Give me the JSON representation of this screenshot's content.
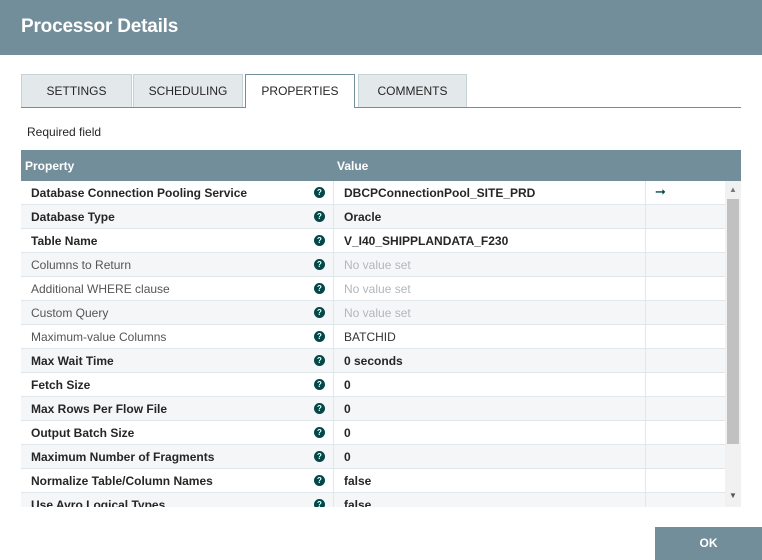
{
  "dialog": {
    "title": "Processor Details"
  },
  "tabs": [
    {
      "label": "SETTINGS",
      "active": false
    },
    {
      "label": "SCHEDULING",
      "active": false
    },
    {
      "label": "PROPERTIES",
      "active": true
    },
    {
      "label": "COMMENTS",
      "active": false
    }
  ],
  "required_label": "Required field",
  "grid": {
    "columns": {
      "property": "Property",
      "value": "Value"
    },
    "rows": [
      {
        "name": "Database Connection Pooling Service",
        "required": true,
        "value": "DBCPConnectionPool_SITE_PRD",
        "value_state": "set",
        "action": "go-to-arrow-icon"
      },
      {
        "name": "Database Type",
        "required": true,
        "value": "Oracle",
        "value_state": "set"
      },
      {
        "name": "Table Name",
        "required": true,
        "value": "V_I40_SHIPPLANDATA_F230",
        "value_state": "set"
      },
      {
        "name": "Columns to Return",
        "required": false,
        "value": "No value set",
        "value_state": "unset"
      },
      {
        "name": "Additional WHERE clause",
        "required": false,
        "value": "No value set",
        "value_state": "unset"
      },
      {
        "name": "Custom Query",
        "required": false,
        "value": "No value set",
        "value_state": "unset"
      },
      {
        "name": "Maximum-value Columns",
        "required": false,
        "value": "BATCHID",
        "value_state": "plain"
      },
      {
        "name": "Max Wait Time",
        "required": true,
        "value": "0 seconds",
        "value_state": "set"
      },
      {
        "name": "Fetch Size",
        "required": true,
        "value": "0",
        "value_state": "set"
      },
      {
        "name": "Max Rows Per Flow File",
        "required": true,
        "value": "0",
        "value_state": "set"
      },
      {
        "name": "Output Batch Size",
        "required": true,
        "value": "0",
        "value_state": "set"
      },
      {
        "name": "Maximum Number of Fragments",
        "required": true,
        "value": "0",
        "value_state": "set"
      },
      {
        "name": "Normalize Table/Column Names",
        "required": true,
        "value": "false",
        "value_state": "set"
      },
      {
        "name": "Use Avro Logical Types",
        "required": true,
        "value": "false",
        "value_state": "set"
      }
    ]
  },
  "ok_label": "OK",
  "icons": {
    "help": "help-circle-icon",
    "arrow": "right-arrow-icon"
  },
  "colors": {
    "header": "#728e9b",
    "help_icon": "#004849",
    "unset_text": "#b0b8bc"
  }
}
